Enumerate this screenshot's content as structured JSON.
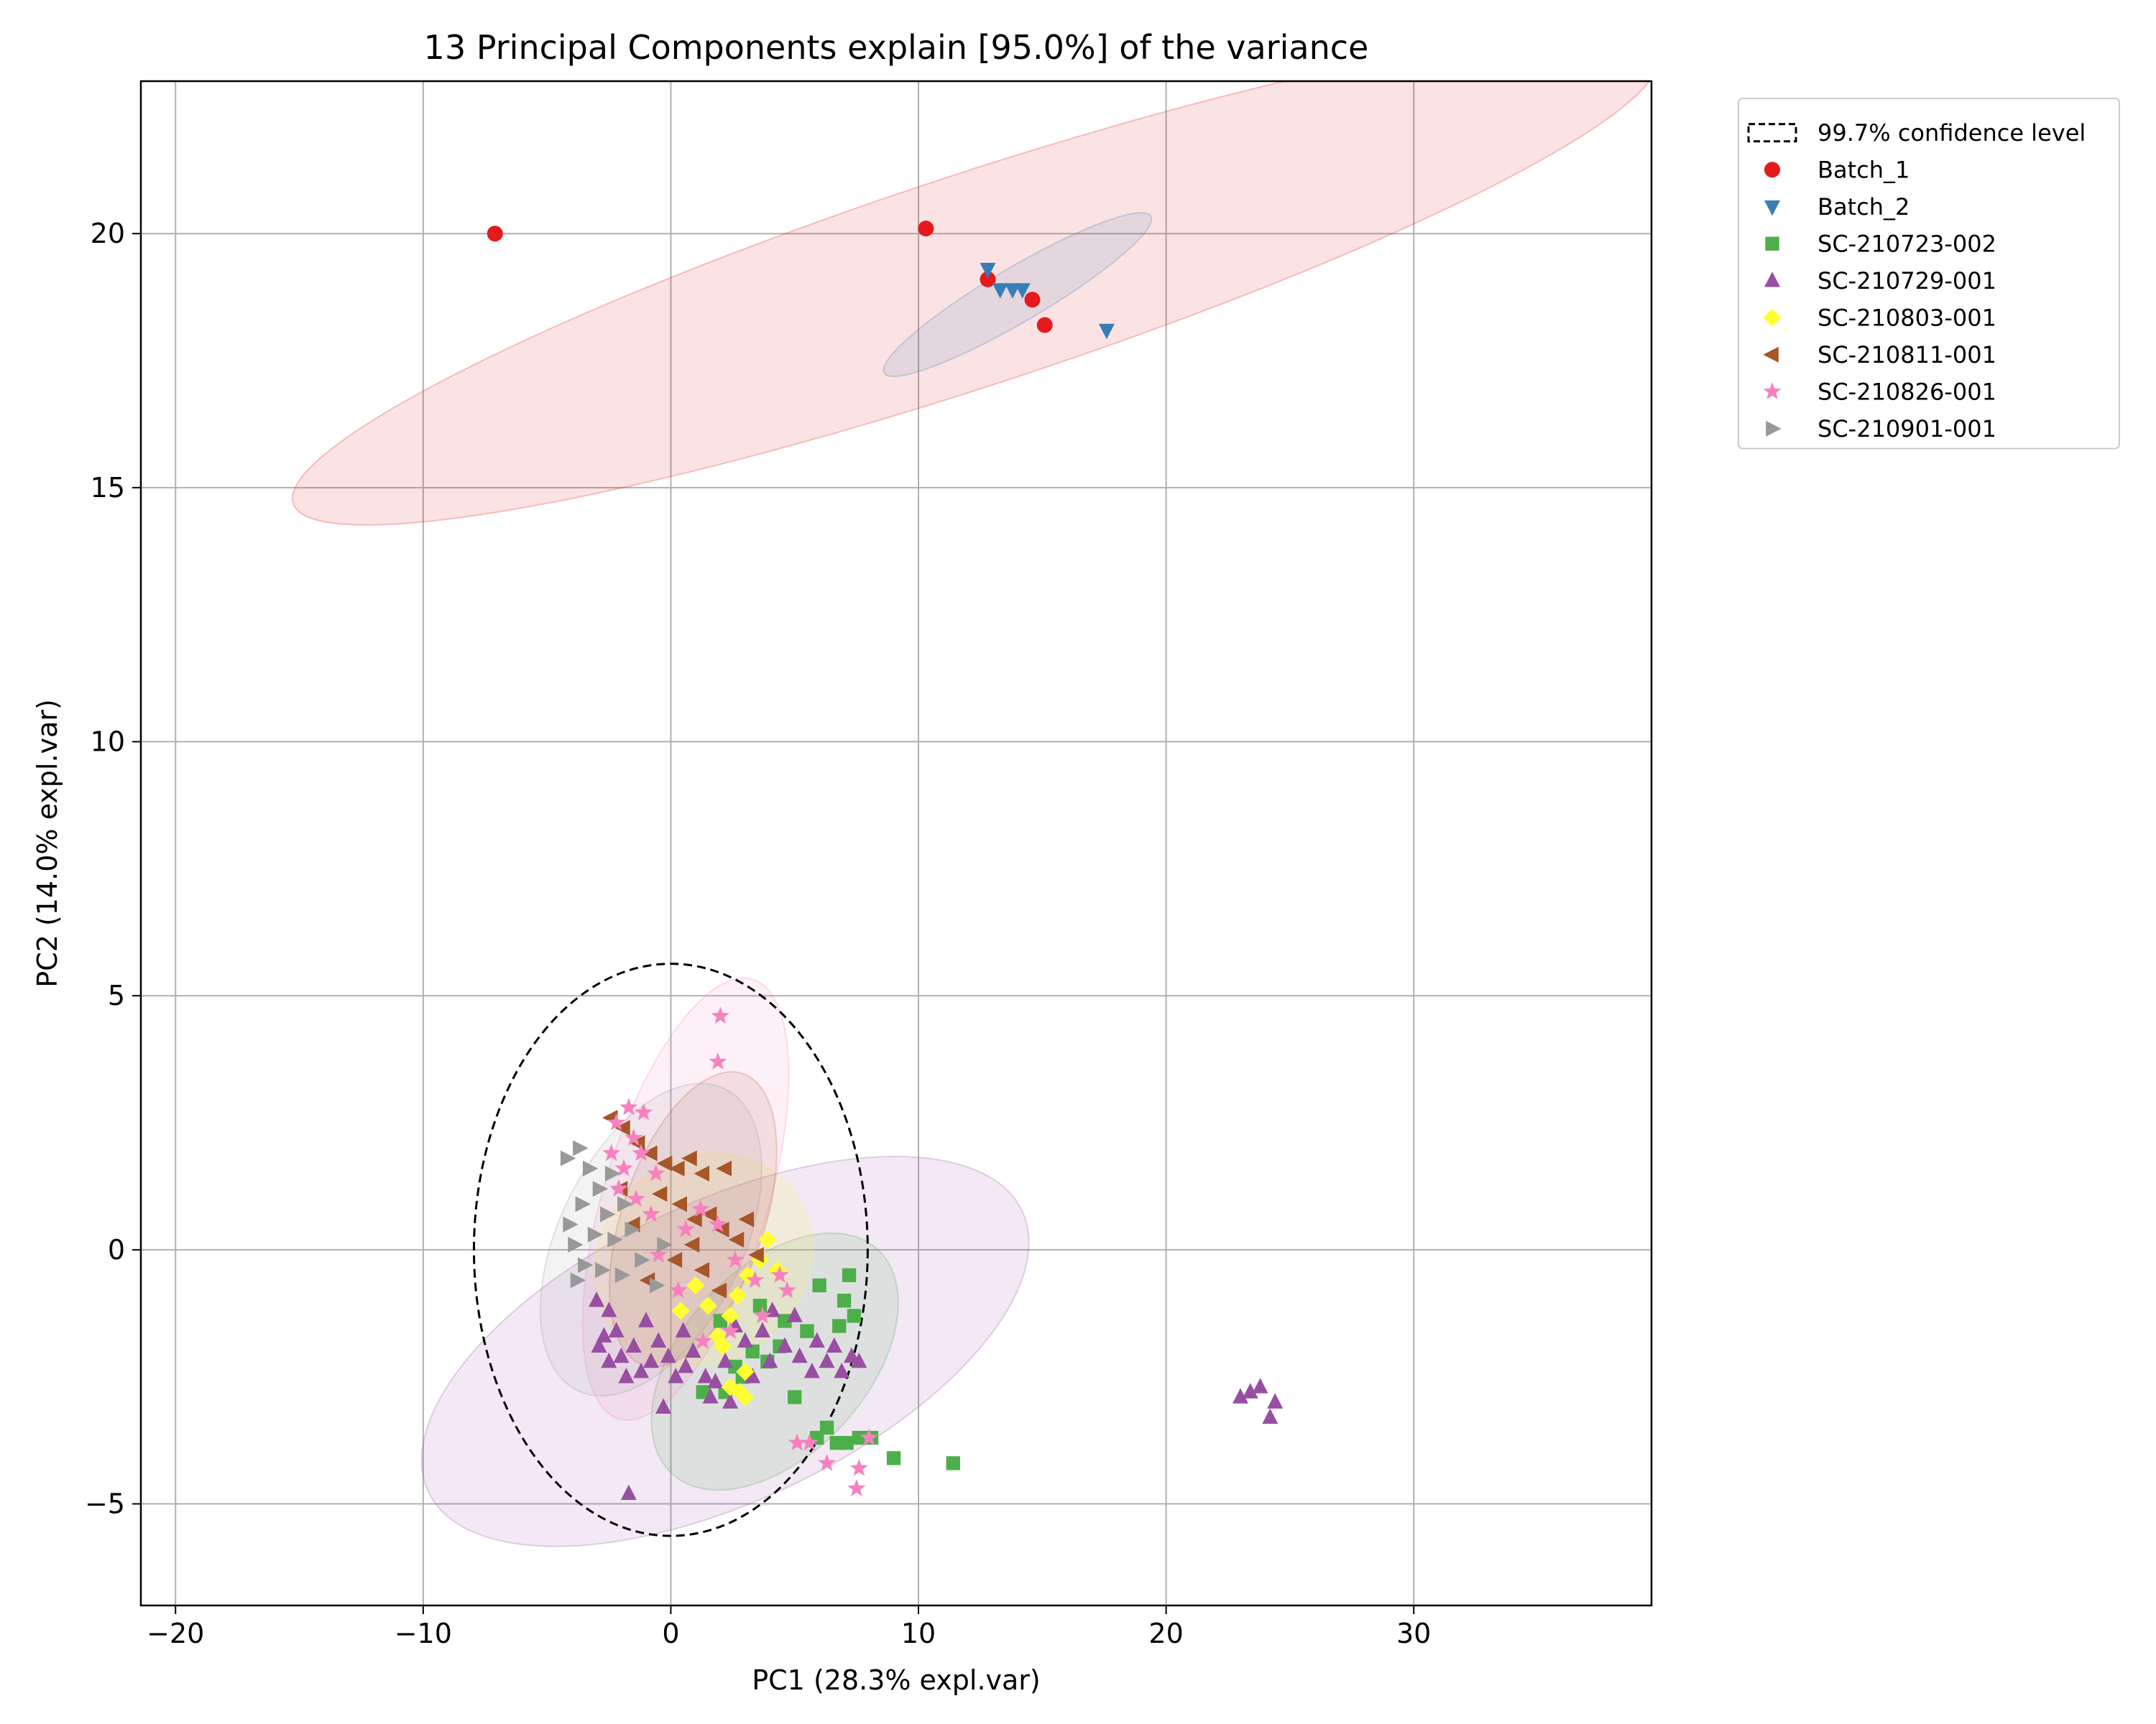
{
  "chart_data": {
    "type": "scatter",
    "title": "13 Principal Components explain [95.0%] of the variance",
    "xlabel": "PC1 (28.3% expl.var)",
    "ylabel": "PC2 (14.0% expl.var)",
    "xlim": [
      -21.4,
      39.6
    ],
    "ylim": [
      -7.0,
      23.0
    ],
    "xticks": [
      -20,
      -10,
      0,
      10,
      20,
      30
    ],
    "yticks": [
      -5,
      0,
      5,
      10,
      15,
      20
    ],
    "grid": true,
    "legend_position": "outside-top-right",
    "confidence_label": "99.7% confidence level",
    "confidence_ellipse": {
      "cx": 0,
      "cy": 0,
      "rx": 7.95,
      "ry": 5.63
    },
    "series": [
      {
        "name": "Batch_1",
        "marker": "circle",
        "color": "#e41a1c",
        "ellipse": {
          "cx": 12.3,
          "cy": 19.1,
          "rx": 27.9,
          "ry": 2.1,
          "angle": 9.1
        },
        "points": [
          [
            -7.1,
            20.0
          ],
          [
            10.3,
            20.1
          ],
          [
            12.8,
            19.1
          ],
          [
            14.6,
            18.7
          ],
          [
            15.1,
            18.2
          ]
        ]
      },
      {
        "name": "Batch_2",
        "marker": "triangle-down",
        "color": "#377eb8",
        "ellipse": {
          "cx": 14.0,
          "cy": 18.8,
          "rx": 5.6,
          "ry": 0.55,
          "angle": 16
        },
        "points": [
          [
            12.8,
            19.3
          ],
          [
            13.3,
            18.9
          ],
          [
            13.8,
            18.9
          ],
          [
            14.2,
            18.9
          ],
          [
            17.6,
            18.1
          ]
        ]
      },
      {
        "name": "SC-210723-002",
        "marker": "square",
        "color": "#4daf4a",
        "ellipse": {
          "cx": 4.2,
          "cy": -2.2,
          "rx": 4.7,
          "ry": 2.0,
          "angle": 28
        },
        "points": [
          [
            7.2,
            -0.5
          ],
          [
            6.0,
            -0.7
          ],
          [
            7.0,
            -1.0
          ],
          [
            7.4,
            -1.3
          ],
          [
            6.8,
            -1.5
          ],
          [
            5.5,
            -1.6
          ],
          [
            4.6,
            -1.4
          ],
          [
            4.4,
            -1.9
          ],
          [
            3.9,
            -2.2
          ],
          [
            3.3,
            -2.0
          ],
          [
            2.9,
            -2.5
          ],
          [
            2.6,
            -2.3
          ],
          [
            2.2,
            -2.8
          ],
          [
            1.3,
            -2.8
          ],
          [
            5.0,
            -2.9
          ],
          [
            6.3,
            -3.5
          ],
          [
            5.9,
            -3.7
          ],
          [
            6.7,
            -3.8
          ],
          [
            7.1,
            -3.8
          ],
          [
            7.6,
            -3.7
          ],
          [
            8.1,
            -3.7
          ],
          [
            9.0,
            -4.1
          ],
          [
            11.4,
            -4.2
          ],
          [
            3.6,
            -1.1
          ],
          [
            2.0,
            -1.4
          ]
        ]
      },
      {
        "name": "SC-210729-001",
        "marker": "triangle-up",
        "color": "#984ea3",
        "ellipse": {
          "cx": 2.2,
          "cy": -2.0,
          "rx": 12.3,
          "ry": 3.0,
          "angle": 13
        },
        "points": [
          [
            -3.0,
            -1.0
          ],
          [
            -2.5,
            -1.2
          ],
          [
            -2.7,
            -1.7
          ],
          [
            -2.2,
            -1.6
          ],
          [
            -2.5,
            -2.2
          ],
          [
            -2.0,
            -2.1
          ],
          [
            -1.8,
            -2.5
          ],
          [
            -1.5,
            -1.9
          ],
          [
            -1.2,
            -2.4
          ],
          [
            -0.8,
            -2.2
          ],
          [
            -0.5,
            -1.8
          ],
          [
            -0.1,
            -2.1
          ],
          [
            0.2,
            -2.5
          ],
          [
            0.6,
            -2.3
          ],
          [
            0.9,
            -2.0
          ],
          [
            1.4,
            -2.5
          ],
          [
            1.8,
            -2.6
          ],
          [
            2.2,
            -2.2
          ],
          [
            2.6,
            -1.5
          ],
          [
            3.0,
            -1.8
          ],
          [
            3.3,
            -2.5
          ],
          [
            3.7,
            -1.6
          ],
          [
            4.1,
            -1.2
          ],
          [
            4.6,
            -1.9
          ],
          [
            5.2,
            -2.1
          ],
          [
            5.7,
            -2.4
          ],
          [
            5.9,
            -1.8
          ],
          [
            6.3,
            -2.2
          ],
          [
            6.6,
            -1.9
          ],
          [
            6.9,
            -2.4
          ],
          [
            7.3,
            -2.1
          ],
          [
            7.6,
            -2.2
          ],
          [
            5.0,
            -1.3
          ],
          [
            4.0,
            -2.2
          ],
          [
            -0.3,
            -3.1
          ],
          [
            1.6,
            -2.9
          ],
          [
            -1.7,
            -4.8
          ],
          [
            23.0,
            -2.9
          ],
          [
            23.4,
            -2.8
          ],
          [
            23.8,
            -2.7
          ],
          [
            24.2,
            -3.3
          ],
          [
            24.4,
            -3.0
          ],
          [
            -2.9,
            -1.9
          ],
          [
            -1.0,
            -1.4
          ],
          [
            0.5,
            -1.6
          ],
          [
            2.4,
            -3.0
          ]
        ]
      },
      {
        "name": "SC-210803-001",
        "marker": "diamond",
        "color": "#ffff33",
        "ellipse": {
          "cx": 1.3,
          "cy": -0.2,
          "rx": 3.8,
          "ry": 2.1,
          "angle": 22
        },
        "points": [
          [
            3.9,
            0.2
          ],
          [
            3.6,
            -0.2
          ],
          [
            3.1,
            -0.5
          ],
          [
            2.7,
            -0.9
          ],
          [
            2.4,
            -1.3
          ],
          [
            1.9,
            -1.7
          ],
          [
            2.1,
            -1.9
          ],
          [
            3.0,
            -2.4
          ],
          [
            2.4,
            -2.7
          ],
          [
            2.8,
            -2.8
          ],
          [
            3.0,
            -2.9
          ],
          [
            1.5,
            -1.1
          ],
          [
            1.0,
            -0.7
          ],
          [
            0.4,
            -1.2
          ],
          [
            4.3,
            -0.4
          ]
        ]
      },
      {
        "name": "SC-210811-001",
        "marker": "triangle-left",
        "color": "#a65628",
        "ellipse": {
          "cx": 0.9,
          "cy": 0.6,
          "rx": 3.5,
          "ry": 2.0,
          "angle": 55
        },
        "points": [
          [
            -2.4,
            2.6
          ],
          [
            -1.9,
            2.4
          ],
          [
            -1.3,
            2.1
          ],
          [
            -0.8,
            1.9
          ],
          [
            -0.2,
            1.7
          ],
          [
            0.3,
            1.6
          ],
          [
            0.8,
            1.8
          ],
          [
            1.3,
            1.5
          ],
          [
            2.2,
            1.6
          ],
          [
            -0.4,
            1.1
          ],
          [
            0.4,
            0.9
          ],
          [
            1.0,
            0.6
          ],
          [
            1.6,
            0.7
          ],
          [
            2.1,
            0.4
          ],
          [
            2.7,
            0.2
          ],
          [
            3.1,
            0.6
          ],
          [
            3.5,
            -0.1
          ],
          [
            0.2,
            -0.2
          ],
          [
            -0.9,
            -0.6
          ],
          [
            1.3,
            -0.4
          ],
          [
            2.0,
            -0.8
          ],
          [
            -1.5,
            0.5
          ],
          [
            -2.0,
            1.2
          ],
          [
            0.9,
            0.1
          ]
        ]
      },
      {
        "name": "SC-210826-001",
        "marker": "star",
        "color": "#f781bf",
        "ellipse": {
          "cx": 0.6,
          "cy": 1.0,
          "rx": 5.1,
          "ry": 2.4,
          "angle": 58
        },
        "points": [
          [
            2.0,
            4.6
          ],
          [
            1.9,
            3.7
          ],
          [
            -1.7,
            2.8
          ],
          [
            -1.1,
            2.7
          ],
          [
            -2.2,
            2.5
          ],
          [
            -1.5,
            2.2
          ],
          [
            -2.4,
            1.9
          ],
          [
            -1.9,
            1.6
          ],
          [
            -1.2,
            1.9
          ],
          [
            -0.6,
            1.5
          ],
          [
            -2.1,
            1.2
          ],
          [
            -1.4,
            1.0
          ],
          [
            -0.8,
            0.7
          ],
          [
            0.6,
            0.4
          ],
          [
            1.2,
            0.8
          ],
          [
            1.9,
            0.5
          ],
          [
            2.6,
            -0.2
          ],
          [
            3.4,
            -0.6
          ],
          [
            4.4,
            -0.5
          ],
          [
            4.7,
            -0.8
          ],
          [
            3.7,
            -1.3
          ],
          [
            2.4,
            -1.6
          ],
          [
            1.3,
            -1.8
          ],
          [
            5.1,
            -3.8
          ],
          [
            5.6,
            -3.8
          ],
          [
            6.3,
            -4.2
          ],
          [
            7.5,
            -4.7
          ],
          [
            7.6,
            -4.3
          ],
          [
            8.0,
            -3.7
          ],
          [
            -0.5,
            -0.1
          ],
          [
            0.3,
            -0.8
          ]
        ]
      },
      {
        "name": "SC-210901-001",
        "marker": "triangle-right",
        "color": "#999999",
        "ellipse": {
          "cx": -0.8,
          "cy": 0.2,
          "rx": 4.2,
          "ry": 2.3,
          "angle": 45
        },
        "points": [
          [
            -4.2,
            1.8
          ],
          [
            -3.7,
            2.0
          ],
          [
            -3.3,
            1.6
          ],
          [
            -2.9,
            1.2
          ],
          [
            -3.6,
            0.9
          ],
          [
            -4.1,
            0.5
          ],
          [
            -3.9,
            0.1
          ],
          [
            -3.5,
            -0.3
          ],
          [
            -3.1,
            0.3
          ],
          [
            -2.6,
            0.7
          ],
          [
            -2.3,
            0.2
          ],
          [
            -2.8,
            -0.4
          ],
          [
            -2.0,
            -0.5
          ],
          [
            -1.6,
            0.4
          ],
          [
            -1.2,
            -0.2
          ],
          [
            -0.6,
            -0.7
          ],
          [
            -0.3,
            0.1
          ],
          [
            -3.8,
            -0.6
          ],
          [
            -2.4,
            1.5
          ],
          [
            -1.9,
            0.9
          ]
        ]
      }
    ]
  }
}
